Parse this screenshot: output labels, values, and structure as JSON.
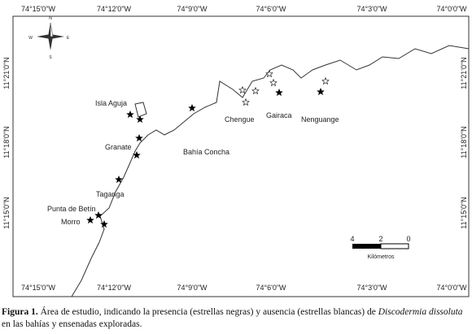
{
  "map": {
    "lon_labels": [
      "74°15'0\"W",
      "74°12'0\"W",
      "74°9'0\"W",
      "74°6'0\"W",
      "74°3'0\"W",
      "74°0'0\"W"
    ],
    "lat_labels": [
      "11°21'0\"N",
      "11°18'0\"N",
      "11°15'0\"N"
    ],
    "places": [
      "Isla Aguja",
      "Granate",
      "Bahía Concha",
      "Taganga",
      "Punta de Betín",
      "Morro",
      "Chengue",
      "Gairaca",
      "Nenguange"
    ],
    "compass": [
      "N",
      "S",
      "E",
      "W"
    ]
  },
  "scale": {
    "labels": [
      "4",
      "2",
      "0"
    ],
    "unit": "Kilómetros"
  },
  "caption": {
    "label": "Figura 1.",
    "text": "Área de estudio, indicando la presencia (estrellas negras) y ausencia (estrellas blancas) de",
    "species": "Discodermia dissoluta",
    "tail": "en las bahías y ensenadas exploradas."
  }
}
